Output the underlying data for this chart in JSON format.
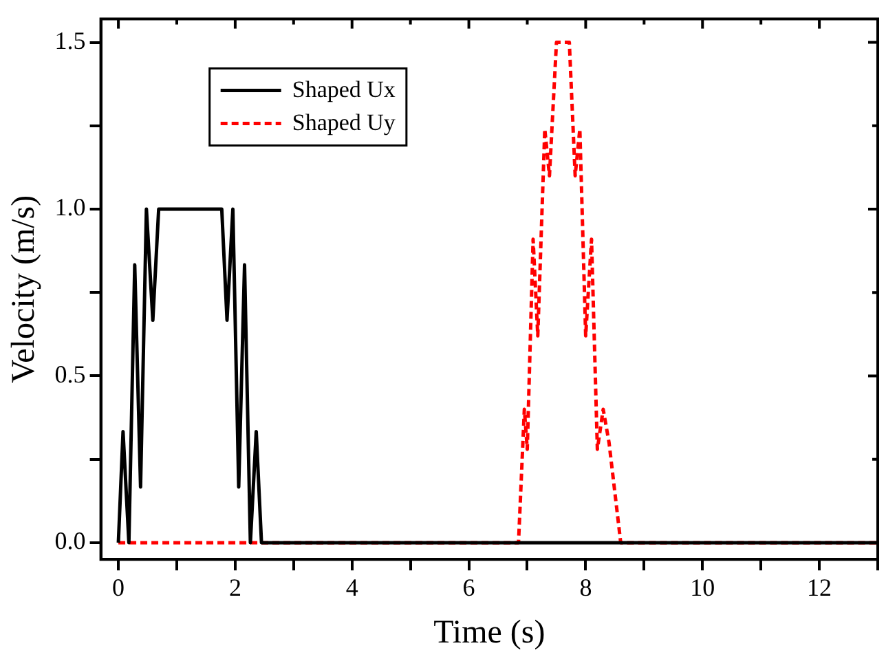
{
  "chart_data": {
    "type": "line",
    "xlabel": "Time (s)",
    "ylabel": "Velocity (m/s)",
    "xlim": [
      -0.3,
      13
    ],
    "xticks": [
      0,
      {
        "value": 1,
        "label": null
      },
      2,
      {
        "value": 3,
        "label": null
      },
      4,
      {
        "value": 5,
        "label": null
      },
      6,
      {
        "value": 7,
        "label": null
      },
      8,
      {
        "value": 9,
        "label": null
      },
      10,
      {
        "value": 11,
        "label": null
      },
      12,
      {
        "value": 13,
        "label": null
      }
    ],
    "ylim": [
      -0.05,
      1.57
    ],
    "yticks": [
      {
        "value": 0,
        "label": "0.0"
      },
      {
        "value": 0.25,
        "label": null
      },
      {
        "value": 0.5,
        "label": "0.5"
      },
      {
        "value": 0.75,
        "label": null
      },
      {
        "value": 1,
        "label": "1.0"
      },
      {
        "value": 1.25,
        "label": null
      },
      {
        "value": 1.5,
        "label": "1.5"
      }
    ],
    "grid": false,
    "legend": "top left",
    "marker": "none",
    "series": [
      {
        "name": "Shaped Ux",
        "color": "#000000",
        "line_style": "solid",
        "x": [
          0,
          0.08,
          0.18,
          0.28,
          0.38,
          0.48,
          0.59,
          0.69,
          1.77,
          1.86,
          1.96,
          2.06,
          2.16,
          2.26,
          2.36,
          2.45,
          13
        ],
        "values": [
          0,
          0.333,
          0,
          0.833,
          0.167,
          1,
          0.667,
          1,
          1,
          0.667,
          1,
          0.167,
          0.833,
          0,
          0.333,
          0,
          0
        ]
      },
      {
        "name": "Shaped Uy",
        "color": "#ff0000",
        "line_style": "dashed",
        "x": [
          0,
          6.85,
          6.95,
          7.0,
          7.1,
          7.18,
          7.3,
          7.38,
          7.5,
          7.72,
          7.82,
          7.9,
          8.0,
          8.1,
          8.2,
          8.3,
          8.4,
          8.6,
          13
        ],
        "values": [
          0,
          0,
          0.4,
          0.28,
          0.91,
          0.62,
          1.24,
          1.1,
          1.5,
          1.5,
          1.1,
          1.24,
          0.62,
          0.91,
          0.28,
          0.4,
          0.3,
          0,
          0
        ]
      }
    ]
  }
}
